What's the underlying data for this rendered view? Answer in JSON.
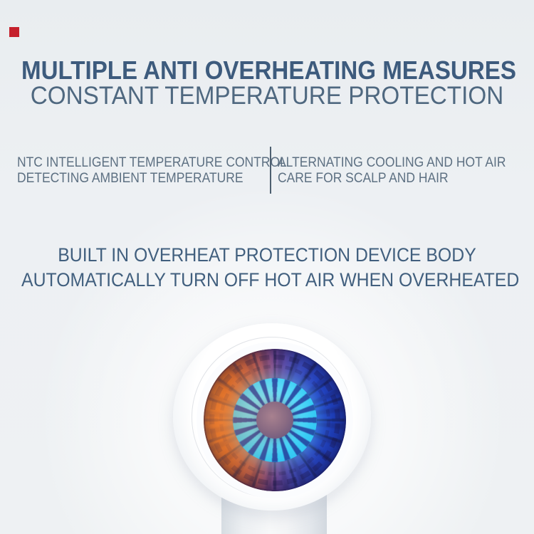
{
  "page": {
    "background_color": "#edf0f3",
    "marker_color": "#c5202c"
  },
  "header": {
    "title": "MULTIPLE ANTI OVERHEATING MEASURES",
    "subtitle": "CONSTANT TEMPERATURE PROTECTION",
    "title_color": "#3d5b7d",
    "subtitle_color": "#4f6880"
  },
  "features": {
    "left": {
      "line1": "NTC INTELLIGENT TEMPERATURE CONTROL",
      "line2": "DETECTING AMBIENT TEMPERATURE"
    },
    "right": {
      "line1": "ALTERNATING COOLING AND HOT AIR",
      "line2": "CARE FOR SCALP AND HAIR"
    },
    "text_color": "#5d7082",
    "divider_color": "#4d5f70"
  },
  "statement": {
    "line1": "BUILT IN OVERHEAT PROTECTION DEVICE BODY",
    "line2": "AUTOMATICALLY TURN OFF HOT AIR WHEN OVERHEATED",
    "color": "#415f7e"
  },
  "product": {
    "description": "hair dryer front view with illuminated fan",
    "body_color": "#f5f7f9",
    "fan_hot_side_color": "#d96420",
    "fan_cold_side_color": "#1b41c4",
    "fan_inner_glow_color": "#38cdf5",
    "fan_hub_color": "#84677f"
  }
}
